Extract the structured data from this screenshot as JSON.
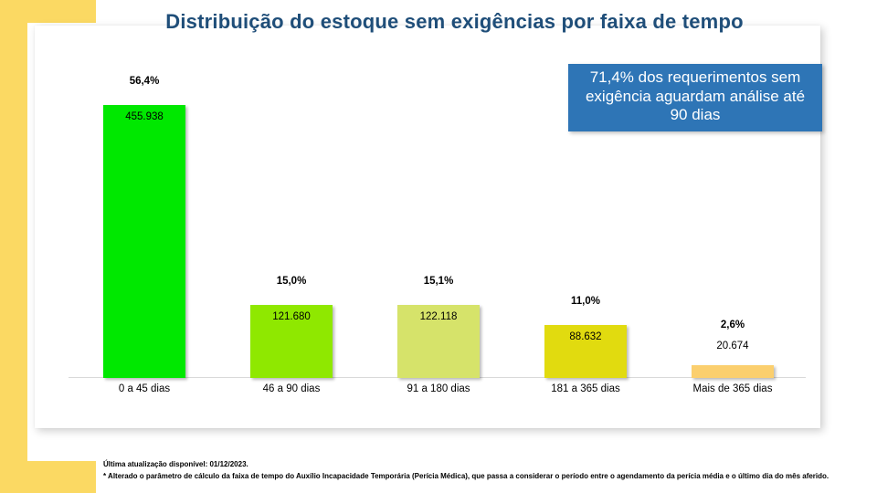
{
  "page": {
    "title": "Distribuição do estoque sem exigências por faixa de tempo",
    "title_color": "#1F4E79",
    "accent_yellow": "#FBD963",
    "card_bg": "#FFFFFF",
    "axis_color": "#D9D9D9"
  },
  "callout": {
    "text": "71,4% dos requerimentos sem exigência aguardam análise até 90 dias",
    "bg_color": "#2E75B6",
    "text_color": "#FFFFFF"
  },
  "footer": {
    "line1": "Última atualização disponível:  01/12/2023.",
    "line2": "* Alterado o parâmetro de cálculo da faixa de tempo do Auxílio Incapacidade Temporária (Perícia Médica), que passa a considerar o período entre o agendamento da perícia média e o último dia do mês aferido."
  },
  "chart_data": {
    "type": "bar",
    "title": "Distribuição do estoque sem exigências por faixa de tempo",
    "categories": [
      "0 a 45 dias",
      "46 a 90 dias",
      "91 a 180 dias",
      "181 a 365 dias",
      "Mais de 365 dias"
    ],
    "values": [
      455938,
      121680,
      122118,
      88632,
      20674
    ],
    "value_labels": [
      "455.938",
      "121.680",
      "122.118",
      "88.632",
      "20.674"
    ],
    "percent_labels": [
      "56,4%",
      "15,0%",
      "15,1%",
      "11,0%",
      "2,6%"
    ],
    "bar_colors": [
      "#00E800",
      "#8FE800",
      "#D6E36A",
      "#E1DB0F",
      "#FBCF6E"
    ],
    "xlabel": "",
    "ylabel": "",
    "ylim": [
      0,
      455938
    ],
    "grid": false,
    "legend": false,
    "annotation": "71,4% dos requerimentos sem exigência aguardam análise até 90 dias"
  }
}
